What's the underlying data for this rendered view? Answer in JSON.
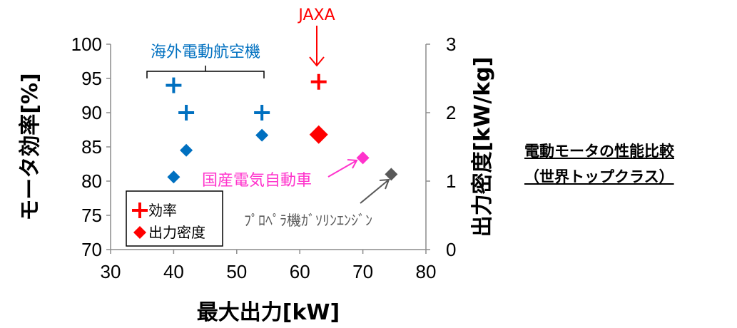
{
  "side_title": {
    "line1": "電動モータの性能比較",
    "line2": "（世界トップクラス）"
  },
  "chart_data": {
    "type": "scatter",
    "title": "",
    "xlabel": "最大出力[kW]",
    "ylabel_left": "モータ効率[%]",
    "ylabel_right": "出力密度[kW/kg]",
    "xlim": [
      30,
      80
    ],
    "ylim_left": [
      70,
      100
    ],
    "ylim_right": [
      0,
      3
    ],
    "x_ticks": [
      "30",
      "40",
      "50",
      "60",
      "70",
      "80"
    ],
    "y_left_ticks": [
      "70",
      "75",
      "80",
      "85",
      "90",
      "95",
      "100"
    ],
    "y_right_ticks": [
      "0",
      "1",
      "2",
      "3"
    ],
    "grid": false,
    "legend_position": "bottom-left",
    "legend": [
      {
        "name": "効率",
        "marker": "plus",
        "color": "#ff0000"
      },
      {
        "name": "出力密度",
        "marker": "diamond",
        "color": "#ff0000"
      }
    ],
    "series": [
      {
        "name": "効率",
        "axis": "left",
        "marker": "plus",
        "points": [
          {
            "x": 40,
            "y": 94,
            "color": "#0070c0"
          },
          {
            "x": 42,
            "y": 90,
            "color": "#0070c0"
          },
          {
            "x": 54,
            "y": 90,
            "color": "#0070c0"
          },
          {
            "x": 63,
            "y": 94.5,
            "color": "#ff0000"
          }
        ]
      },
      {
        "name": "出力密度",
        "axis": "right",
        "marker": "diamond",
        "points": [
          {
            "x": 40,
            "y": 1.06,
            "color": "#0070c0"
          },
          {
            "x": 42,
            "y": 1.45,
            "color": "#0070c0"
          },
          {
            "x": 54,
            "y": 1.67,
            "color": "#0070c0"
          },
          {
            "x": 63,
            "y": 1.68,
            "color": "#ff0000"
          },
          {
            "x": 70,
            "y": 1.34,
            "color": "#ff33cc"
          },
          {
            "x": 74.5,
            "y": 1.1,
            "color": "#595959"
          }
        ]
      }
    ],
    "annotations": {
      "overseas": {
        "text": "海外電動航空機",
        "color": "#0070c0"
      },
      "jaxa": {
        "text": "JAXA",
        "color": "#ff0000"
      },
      "domestic_ev": {
        "text": "国産電気自動車",
        "color": "#ff33cc"
      },
      "propeller": {
        "text": "ﾌﾟﾛﾍﾟﾗ機ｶﾞｿﾘﾝｴﾝｼﾞﾝ",
        "color": "#595959"
      }
    }
  }
}
